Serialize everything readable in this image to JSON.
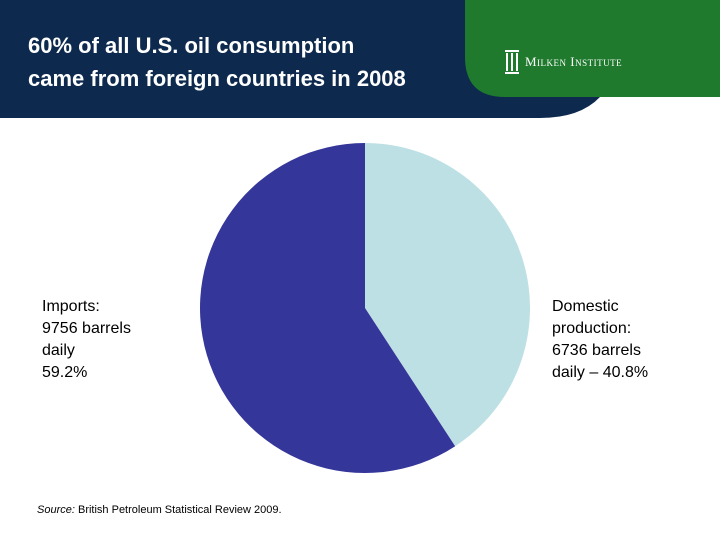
{
  "chart_data": {
    "type": "pie",
    "title": [
      "60% of all U.S. oil consumption",
      "came from foreign countries in 2008"
    ],
    "logo": "Milken Institute",
    "values": [
      40.8,
      59.2
    ],
    "value_labels": [
      [
        "Domestic",
        "production:",
        "6736 barrels",
        "daily – 40.8%"
      ],
      [
        "Imports:",
        "9756 barrels",
        "daily",
        "59.2%"
      ]
    ],
    "colors": [
      "#bde0e4",
      "#35369a"
    ],
    "source_label": "Source:",
    "source": "British Petroleum Statistical Review 2009."
  }
}
